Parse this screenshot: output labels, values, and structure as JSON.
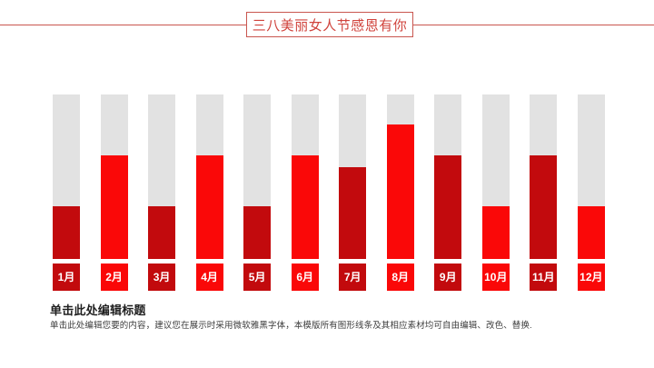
{
  "header": {
    "title": "三八美丽女人节感恩有你",
    "title_color": "#d0433c",
    "accent_color": "#c9564f"
  },
  "chart_data": {
    "type": "bar",
    "title": "",
    "xlabel": "",
    "ylabel": "",
    "categories": [
      "1月",
      "2月",
      "3月",
      "4月",
      "5月",
      "6月",
      "7月",
      "8月",
      "9月",
      "10月",
      "11月",
      "12月"
    ],
    "values": [
      32,
      63,
      32,
      63,
      32,
      63,
      56,
      82,
      63,
      32,
      63,
      32
    ],
    "ylim": [
      0,
      100
    ],
    "grid": false,
    "legend": false,
    "track_color": "#e2e2e2",
    "bar_colors": [
      "#c20a0d",
      "#fa0808",
      "#c20a0d",
      "#fa0808",
      "#c20a0d",
      "#fa0808",
      "#c20a0d",
      "#fa0808",
      "#c20a0d",
      "#fa0808",
      "#c20a0d",
      "#fa0808"
    ],
    "label_text_color": "#ffffff"
  },
  "footer": {
    "heading": "单击此处编辑标题",
    "body": "单击此处编辑您要的内容，建议您在展示时采用微软雅黑字体，本模版所有图形线条及其相应素材均可自由编辑、改色、替换."
  }
}
